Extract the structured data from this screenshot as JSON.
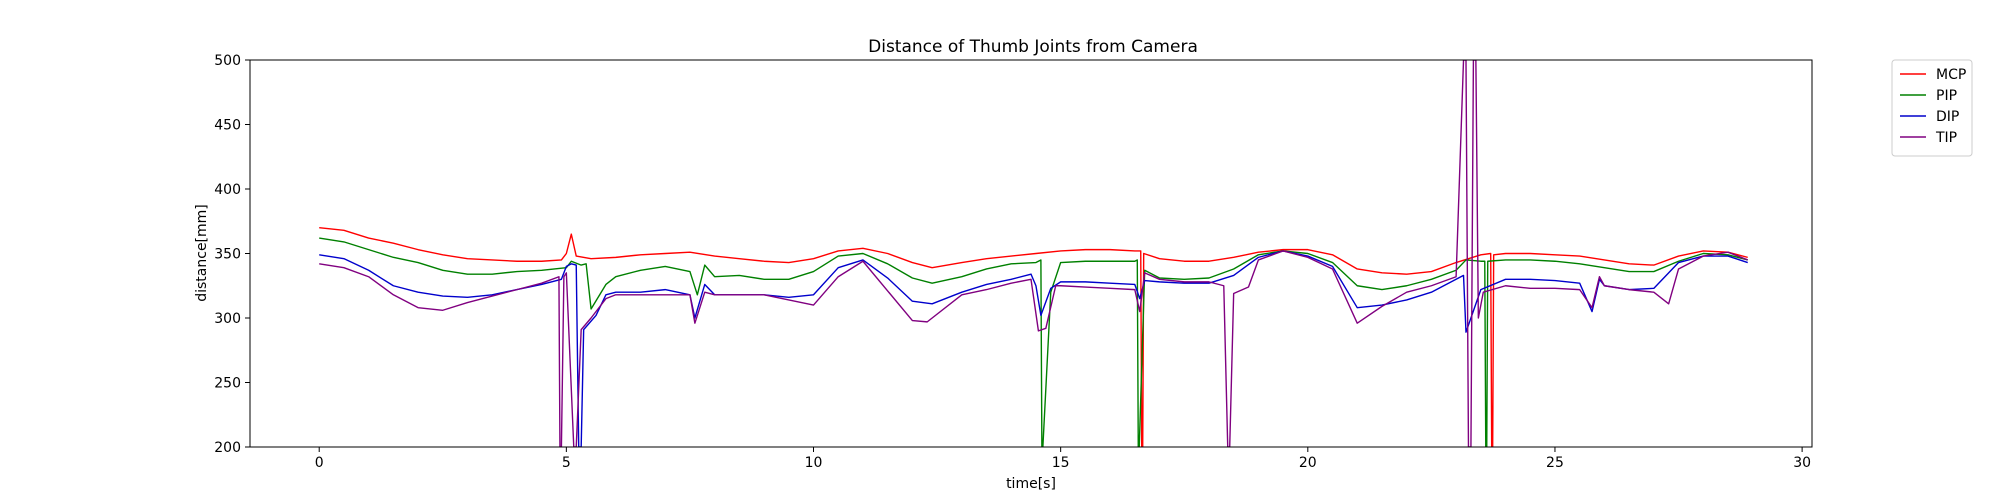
{
  "chart_data": {
    "type": "line",
    "title": "Distance of Thumb Joints from Camera",
    "xlabel": "time[s]",
    "ylabel": "distance[mm]",
    "xlim": [
      -1.4,
      30.2
    ],
    "ylim": [
      200,
      500
    ],
    "xticks": [
      0,
      5,
      10,
      15,
      20,
      25,
      30
    ],
    "yticks": [
      200,
      250,
      300,
      350,
      400,
      450,
      500
    ],
    "grid": false,
    "legend": "outside-top-right",
    "series": [
      {
        "name": "MCP",
        "color": "#ff0000",
        "points": [
          [
            0,
            370
          ],
          [
            0.5,
            368
          ],
          [
            1,
            362
          ],
          [
            1.5,
            358
          ],
          [
            2,
            353
          ],
          [
            2.5,
            349
          ],
          [
            3,
            346
          ],
          [
            3.5,
            345
          ],
          [
            4,
            344
          ],
          [
            4.5,
            344
          ],
          [
            4.9,
            345
          ],
          [
            5.0,
            350
          ],
          [
            5.1,
            365
          ],
          [
            5.2,
            348
          ],
          [
            5.5,
            346
          ],
          [
            6,
            347
          ],
          [
            6.5,
            349
          ],
          [
            7,
            350
          ],
          [
            7.5,
            351
          ],
          [
            8,
            348
          ],
          [
            8.5,
            346
          ],
          [
            9,
            344
          ],
          [
            9.5,
            343
          ],
          [
            10,
            346
          ],
          [
            10.5,
            352
          ],
          [
            11,
            354
          ],
          [
            11.5,
            350
          ],
          [
            12,
            343
          ],
          [
            12.4,
            339
          ],
          [
            13,
            343
          ],
          [
            13.5,
            346
          ],
          [
            14,
            348
          ],
          [
            14.5,
            350
          ],
          [
            15,
            352
          ],
          [
            15.5,
            353
          ],
          [
            16,
            353
          ],
          [
            16.5,
            352
          ],
          [
            16.62,
            352
          ],
          [
            16.64,
            200
          ],
          [
            16.66,
            200
          ],
          [
            16.68,
            350
          ],
          [
            17,
            346
          ],
          [
            17.5,
            344
          ],
          [
            18,
            344
          ],
          [
            18.5,
            347
          ],
          [
            19,
            351
          ],
          [
            19.5,
            353
          ],
          [
            20,
            353
          ],
          [
            20.5,
            349
          ],
          [
            21,
            338
          ],
          [
            21.5,
            335
          ],
          [
            22,
            334
          ],
          [
            22.5,
            336
          ],
          [
            23,
            343
          ],
          [
            23.5,
            349
          ],
          [
            23.7,
            350
          ],
          [
            23.72,
            200
          ],
          [
            23.74,
            200
          ],
          [
            23.76,
            349
          ],
          [
            24,
            350
          ],
          [
            24.5,
            350
          ],
          [
            25,
            349
          ],
          [
            25.5,
            348
          ],
          [
            26,
            345
          ],
          [
            26.5,
            342
          ],
          [
            27,
            341
          ],
          [
            27.5,
            348
          ],
          [
            28,
            352
          ],
          [
            28.5,
            351
          ],
          [
            28.9,
            347
          ]
        ]
      },
      {
        "name": "PIP",
        "color": "#008000",
        "points": [
          [
            0,
            362
          ],
          [
            0.5,
            359
          ],
          [
            1,
            353
          ],
          [
            1.5,
            347
          ],
          [
            2,
            343
          ],
          [
            2.5,
            337
          ],
          [
            3,
            334
          ],
          [
            3.5,
            334
          ],
          [
            4,
            336
          ],
          [
            4.5,
            337
          ],
          [
            5,
            339
          ],
          [
            5.1,
            344
          ],
          [
            5.3,
            341
          ],
          [
            5.4,
            342
          ],
          [
            5.5,
            307
          ],
          [
            5.8,
            326
          ],
          [
            6,
            332
          ],
          [
            6.5,
            337
          ],
          [
            7,
            340
          ],
          [
            7.5,
            336
          ],
          [
            7.65,
            318
          ],
          [
            7.8,
            341
          ],
          [
            8,
            332
          ],
          [
            8.5,
            333
          ],
          [
            9,
            330
          ],
          [
            9.5,
            330
          ],
          [
            10,
            336
          ],
          [
            10.5,
            348
          ],
          [
            11,
            350
          ],
          [
            11.5,
            342
          ],
          [
            12,
            331
          ],
          [
            12.4,
            327
          ],
          [
            13,
            332
          ],
          [
            13.5,
            338
          ],
          [
            14,
            342
          ],
          [
            14.5,
            343
          ],
          [
            14.6,
            345
          ],
          [
            14.62,
            200
          ],
          [
            14.64,
            200
          ],
          [
            14.8,
            320
          ],
          [
            15,
            343
          ],
          [
            15.5,
            344
          ],
          [
            16,
            344
          ],
          [
            16.5,
            344
          ],
          [
            16.55,
            345
          ],
          [
            16.57,
            200
          ],
          [
            16.59,
            200
          ],
          [
            16.7,
            337
          ],
          [
            17,
            331
          ],
          [
            17.5,
            330
          ],
          [
            18,
            331
          ],
          [
            18.5,
            338
          ],
          [
            19,
            349
          ],
          [
            19.5,
            352
          ],
          [
            20,
            350
          ],
          [
            20.5,
            343
          ],
          [
            21,
            325
          ],
          [
            21.5,
            322
          ],
          [
            22,
            325
          ],
          [
            22.5,
            330
          ],
          [
            23,
            337
          ],
          [
            23.2,
            345
          ],
          [
            23.5,
            344
          ],
          [
            23.58,
            344
          ],
          [
            23.6,
            200
          ],
          [
            23.62,
            200
          ],
          [
            23.64,
            344
          ],
          [
            24,
            345
          ],
          [
            24.5,
            345
          ],
          [
            25,
            344
          ],
          [
            25.5,
            342
          ],
          [
            26,
            339
          ],
          [
            26.5,
            336
          ],
          [
            27,
            336
          ],
          [
            27.5,
            344
          ],
          [
            28,
            350
          ],
          [
            28.5,
            349
          ],
          [
            28.9,
            345
          ]
        ]
      },
      {
        "name": "DIP",
        "color": "#0000cc",
        "points": [
          [
            0,
            349
          ],
          [
            0.5,
            346
          ],
          [
            1,
            337
          ],
          [
            1.5,
            325
          ],
          [
            2,
            320
          ],
          [
            2.5,
            317
          ],
          [
            3,
            316
          ],
          [
            3.5,
            318
          ],
          [
            4,
            322
          ],
          [
            4.5,
            326
          ],
          [
            4.9,
            330
          ],
          [
            5.0,
            340
          ],
          [
            5.1,
            342
          ],
          [
            5.2,
            341
          ],
          [
            5.25,
            200
          ],
          [
            5.3,
            200
          ],
          [
            5.35,
            291
          ],
          [
            5.6,
            302
          ],
          [
            5.8,
            318
          ],
          [
            6,
            320
          ],
          [
            6.5,
            320
          ],
          [
            7,
            322
          ],
          [
            7.5,
            318
          ],
          [
            7.6,
            300
          ],
          [
            7.8,
            326
          ],
          [
            8,
            318
          ],
          [
            8.5,
            318
          ],
          [
            9,
            318
          ],
          [
            9.5,
            316
          ],
          [
            10,
            318
          ],
          [
            10.5,
            339
          ],
          [
            11,
            345
          ],
          [
            11.5,
            331
          ],
          [
            12,
            313
          ],
          [
            12.4,
            311
          ],
          [
            13,
            320
          ],
          [
            13.5,
            326
          ],
          [
            14,
            330
          ],
          [
            14.4,
            334
          ],
          [
            14.5,
            325
          ],
          [
            14.6,
            302
          ],
          [
            14.8,
            323
          ],
          [
            15,
            328
          ],
          [
            15.5,
            328
          ],
          [
            16,
            327
          ],
          [
            16.5,
            326
          ],
          [
            16.6,
            315
          ],
          [
            16.7,
            329
          ],
          [
            17,
            328
          ],
          [
            17.5,
            327
          ],
          [
            18,
            327
          ],
          [
            18.5,
            333
          ],
          [
            19,
            347
          ],
          [
            19.5,
            352
          ],
          [
            20,
            348
          ],
          [
            20.5,
            340
          ],
          [
            21,
            308
          ],
          [
            21.5,
            310
          ],
          [
            22,
            314
          ],
          [
            22.5,
            320
          ],
          [
            23,
            330
          ],
          [
            23.15,
            333
          ],
          [
            23.2,
            289
          ],
          [
            23.3,
            300
          ],
          [
            23.5,
            322
          ],
          [
            24,
            330
          ],
          [
            24.5,
            330
          ],
          [
            25,
            329
          ],
          [
            25.5,
            327
          ],
          [
            25.75,
            305
          ],
          [
            25.9,
            330
          ],
          [
            26,
            325
          ],
          [
            26.5,
            322
          ],
          [
            27,
            323
          ],
          [
            27.5,
            343
          ],
          [
            28,
            348
          ],
          [
            28.5,
            348
          ],
          [
            28.9,
            343
          ]
        ]
      },
      {
        "name": "TIP",
        "color": "#800080",
        "points": [
          [
            0,
            342
          ],
          [
            0.5,
            339
          ],
          [
            1,
            332
          ],
          [
            1.5,
            318
          ],
          [
            2,
            308
          ],
          [
            2.5,
            306
          ],
          [
            3,
            312
          ],
          [
            3.5,
            317
          ],
          [
            4,
            322
          ],
          [
            4.5,
            327
          ],
          [
            4.85,
            332
          ],
          [
            4.87,
            200
          ],
          [
            4.9,
            200
          ],
          [
            4.95,
            332
          ],
          [
            5,
            335
          ],
          [
            5.15,
            200
          ],
          [
            5.2,
            200
          ],
          [
            5.3,
            291
          ],
          [
            5.5,
            300
          ],
          [
            5.8,
            315
          ],
          [
            6,
            318
          ],
          [
            6.5,
            318
          ],
          [
            7,
            318
          ],
          [
            7.5,
            318
          ],
          [
            7.6,
            296
          ],
          [
            7.8,
            320
          ],
          [
            8,
            318
          ],
          [
            8.5,
            318
          ],
          [
            9,
            318
          ],
          [
            9.5,
            314
          ],
          [
            10,
            310
          ],
          [
            10.5,
            332
          ],
          [
            11,
            344
          ],
          [
            11.5,
            321
          ],
          [
            12,
            298
          ],
          [
            12.3,
            297
          ],
          [
            13,
            318
          ],
          [
            13.5,
            322
          ],
          [
            14,
            327
          ],
          [
            14.4,
            330
          ],
          [
            14.55,
            290
          ],
          [
            14.7,
            292
          ],
          [
            14.9,
            325
          ],
          [
            15,
            325
          ],
          [
            15.5,
            324
          ],
          [
            16,
            323
          ],
          [
            16.5,
            322
          ],
          [
            16.6,
            305
          ],
          [
            16.7,
            335
          ],
          [
            17,
            330
          ],
          [
            17.5,
            328
          ],
          [
            18,
            328
          ],
          [
            18.3,
            325
          ],
          [
            18.38,
            200
          ],
          [
            18.42,
            200
          ],
          [
            18.5,
            319
          ],
          [
            18.8,
            324
          ],
          [
            19,
            345
          ],
          [
            19.5,
            352
          ],
          [
            20,
            347
          ],
          [
            20.5,
            338
          ],
          [
            21,
            296
          ],
          [
            21.5,
            309
          ],
          [
            22,
            320
          ],
          [
            22.5,
            325
          ],
          [
            23,
            332
          ],
          [
            23.15,
            500
          ],
          [
            23.2,
            500
          ],
          [
            23.25,
            200
          ],
          [
            23.3,
            200
          ],
          [
            23.35,
            500
          ],
          [
            23.4,
            500
          ],
          [
            23.45,
            300
          ],
          [
            23.55,
            320
          ],
          [
            24,
            325
          ],
          [
            24.5,
            323
          ],
          [
            25,
            323
          ],
          [
            25.5,
            322
          ],
          [
            25.75,
            308
          ],
          [
            25.9,
            332
          ],
          [
            26,
            325
          ],
          [
            26.5,
            322
          ],
          [
            27,
            320
          ],
          [
            27.3,
            311
          ],
          [
            27.5,
            338
          ],
          [
            28,
            348
          ],
          [
            28.5,
            351
          ],
          [
            28.9,
            345
          ]
        ]
      }
    ]
  }
}
